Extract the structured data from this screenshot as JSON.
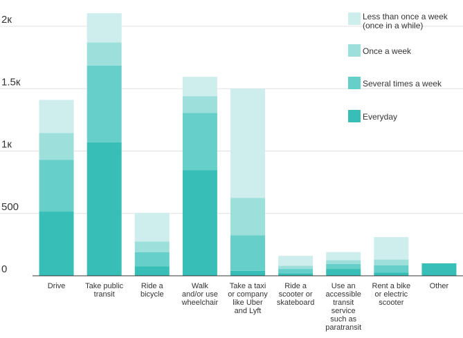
{
  "chart_data": {
    "type": "bar",
    "stacked": true,
    "categories": [
      "Drive",
      "Take public transit",
      "Ride a bicycle",
      "Walk and/or use wheelchair",
      "Take a taxi or company like Uber and Lyft",
      "Ride a scooter or skateboard",
      "Use an accessible transit service such as paratransit",
      "Rent a bike or electric scooter",
      "Other"
    ],
    "category_lines": [
      [
        "Drive"
      ],
      [
        "Take public",
        "transit"
      ],
      [
        "Ride a",
        "bicycle"
      ],
      [
        "Walk",
        "and/or use",
        "wheelchair"
      ],
      [
        "Take a taxi",
        "or company",
        "like Uber",
        "and Lyft"
      ],
      [
        "Ride a",
        "scooter or",
        "skateboard"
      ],
      [
        "Use an",
        "accessible",
        "transit",
        "service",
        "such as",
        "paratransit"
      ],
      [
        "Rent a bike",
        "or electric",
        "scooter"
      ],
      [
        "Other"
      ]
    ],
    "series": [
      {
        "name": "Everyday",
        "color": "#37bfb7",
        "values": [
          515,
          1070,
          75,
          845,
          40,
          20,
          55,
          25,
          100
        ]
      },
      {
        "name": "Several times a week",
        "color": "#66cfca",
        "values": [
          415,
          615,
          115,
          460,
          285,
          35,
          40,
          60,
          0
        ]
      },
      {
        "name": "Once a week",
        "color": "#9ddfdb",
        "values": [
          215,
          185,
          85,
          135,
          300,
          25,
          30,
          45,
          0
        ]
      },
      {
        "name": "Less than once a week\n(once in a while)",
        "color": "#cdeeec",
        "values": [
          265,
          235,
          230,
          155,
          875,
          80,
          65,
          180,
          0
        ]
      }
    ],
    "legend_order": [
      3,
      2,
      1,
      0
    ],
    "legend_lines": [
      [
        "Less than once a week",
        "(once in a while)"
      ],
      [
        "Once a week"
      ],
      [
        "Several times a week"
      ],
      [
        "Everyday"
      ]
    ],
    "yticks": [
      0,
      500,
      1000,
      1500,
      2000
    ],
    "ytick_labels": [
      "0",
      "500",
      "1к",
      "1.5к",
      "2к"
    ],
    "ylim": [
      0,
      2100
    ],
    "grid": true,
    "legend_position": "top-right",
    "title": "",
    "xlabel": "",
    "ylabel": ""
  }
}
